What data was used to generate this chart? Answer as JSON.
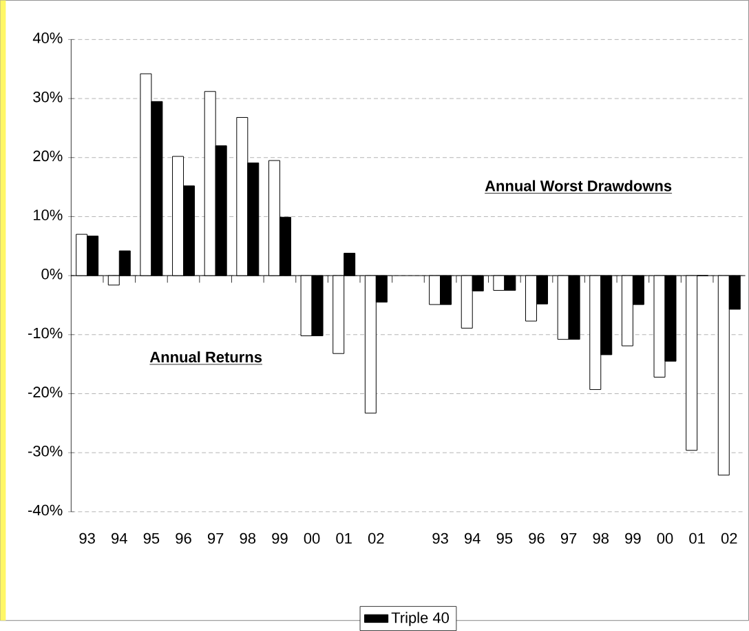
{
  "chart_data": {
    "type": "bar",
    "categories": [
      "93",
      "94",
      "95",
      "96",
      "97",
      "98",
      "99",
      "00",
      "01",
      "02",
      null,
      "93",
      "94",
      "95",
      "96",
      "97",
      "98",
      "99",
      "00",
      "01",
      "02"
    ],
    "series": [
      {
        "color": "#ffffff",
        "values": [
          7.0,
          -1.6,
          34.2,
          20.2,
          31.2,
          26.8,
          19.5,
          -10.2,
          -13.2,
          -23.3,
          null,
          -4.9,
          -8.9,
          -2.5,
          -7.7,
          -10.8,
          -19.3,
          -11.9,
          -17.2,
          -29.6,
          -33.8
        ]
      },
      {
        "name": "Triple 40",
        "color": "#000000",
        "values": [
          6.7,
          4.2,
          29.5,
          15.2,
          22.0,
          19.1,
          9.9,
          -10.2,
          3.8,
          -4.5,
          null,
          -4.9,
          -2.6,
          -2.5,
          -4.8,
          -10.8,
          -13.4,
          -4.9,
          -14.5,
          0,
          -5.7
        ]
      }
    ],
    "ylim": [
      -40,
      40
    ],
    "yticks": [
      {
        "value": -40,
        "label": "-40%"
      },
      {
        "value": -30,
        "label": "-30%"
      },
      {
        "value": -20,
        "label": "-20%"
      },
      {
        "value": -10,
        "label": "-10%"
      },
      {
        "value": 0,
        "label": "0%"
      },
      {
        "value": 10,
        "label": "10%"
      },
      {
        "value": 20,
        "label": "20%"
      },
      {
        "value": 30,
        "label": "30%"
      },
      {
        "value": 40,
        "label": "40%"
      }
    ],
    "grid": "y",
    "legend": "bottom",
    "annotations": [
      "Annual Worst Drawdowns",
      "Annual Returns"
    ]
  }
}
